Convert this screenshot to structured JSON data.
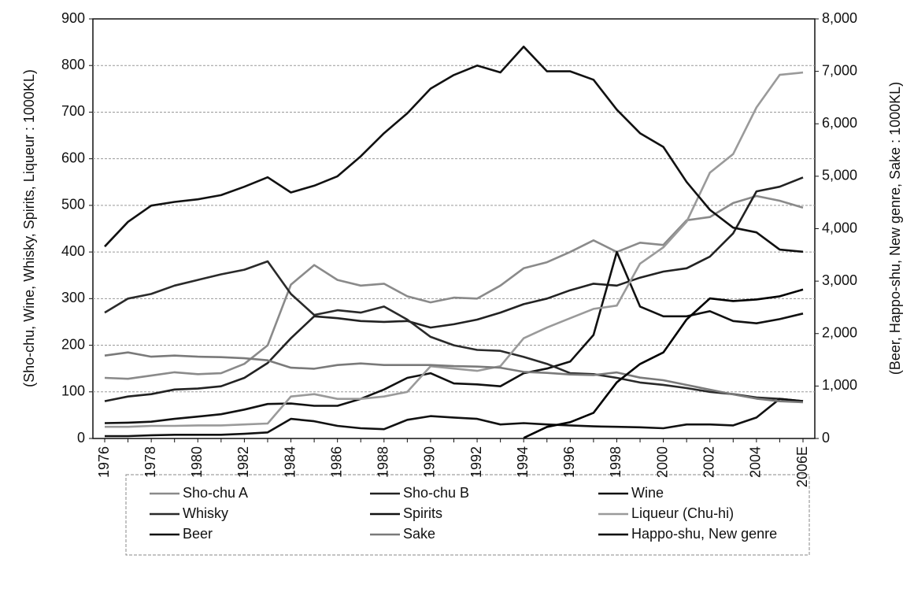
{
  "chart_data": {
    "type": "line",
    "ylabel": "(Sho-chu, Wine, Whisky, Spirits, Liqueur : 1000KL)",
    "y2label": "(Beer,  Happo-shu, New genre, Sake : 1000KL)",
    "categories": [
      "1976",
      null,
      "1978",
      null,
      "1980",
      null,
      "1982",
      null,
      "1984",
      null,
      "1986",
      null,
      "1988",
      null,
      "1990",
      null,
      "1992",
      null,
      "1994",
      null,
      "1996",
      null,
      "1998",
      null,
      "2000",
      null,
      "2002",
      null,
      "2004",
      null,
      "2006E"
    ],
    "ylim": [
      0,
      900
    ],
    "yticks": [
      0,
      100,
      200,
      300,
      400,
      500,
      600,
      700,
      800,
      900
    ],
    "y2lim": [
      0,
      8000
    ],
    "y2ticks": [
      0,
      {
        "value": 1000,
        "label": "1,000"
      },
      {
        "value": 2000,
        "label": "2,000"
      },
      {
        "value": 3000,
        "label": "3,000"
      },
      {
        "value": 4000,
        "label": "4,000"
      },
      {
        "value": 5000,
        "label": "5,000"
      },
      {
        "value": 6000,
        "label": "6,000"
      },
      {
        "value": 7000,
        "label": "7,000"
      },
      {
        "value": 8000,
        "label": "8,000"
      }
    ],
    "grid": true,
    "legend": "bottom",
    "series": [
      {
        "name": "Sho-chu A",
        "color": "#8a8a8a",
        "values": [
          130,
          128,
          135,
          142,
          138,
          140,
          160,
          200,
          330,
          372,
          340,
          328,
          332,
          305,
          292,
          302,
          300,
          328,
          365,
          378,
          400,
          425,
          400,
          420,
          415,
          468,
          475,
          505,
          520,
          510,
          495
        ]
      },
      {
        "name": "Sho-chu B",
        "color": "#222222",
        "values": [
          80,
          90,
          95,
          105,
          107,
          112,
          130,
          162,
          215,
          262,
          258,
          252,
          250,
          252,
          238,
          245,
          255,
          270,
          288,
          300,
          318,
          332,
          328,
          345,
          358,
          365,
          390,
          440,
          530,
          540,
          560
        ]
      },
      {
        "name": "Wine",
        "color": "#111111",
        "values": [
          33,
          34,
          36,
          42,
          47,
          52,
          62,
          74,
          75,
          70,
          70,
          85,
          105,
          130,
          140,
          118,
          116,
          112,
          140,
          150,
          165,
          222,
          400,
          283,
          262,
          262,
          273,
          252,
          247,
          256,
          268
        ]
      },
      {
        "name": "Whisky",
        "color": "#2a2a2a",
        "values": [
          270,
          300,
          310,
          328,
          340,
          352,
          362,
          380,
          310,
          265,
          275,
          270,
          283,
          255,
          218,
          200,
          190,
          188,
          175,
          160,
          140,
          138,
          130,
          120,
          115,
          108,
          100,
          95,
          88,
          85,
          80
        ]
      },
      {
        "name": "Spirits",
        "color": "#111111",
        "values": [
          5,
          5,
          7,
          8,
          8,
          8,
          10,
          13,
          42,
          37,
          27,
          22,
          20,
          40,
          48,
          45,
          42,
          30,
          33,
          30,
          28,
          26,
          25,
          24,
          22,
          30,
          30,
          28,
          45,
          85,
          80
        ]
      },
      {
        "name": "Liqueur (Chu-hi)",
        "color": "#9a9a9a",
        "values": [
          25,
          25,
          27,
          27,
          28,
          28,
          30,
          32,
          90,
          95,
          85,
          85,
          90,
          100,
          155,
          150,
          145,
          155,
          215,
          238,
          258,
          278,
          285,
          375,
          410,
          465,
          570,
          610,
          710,
          780,
          785
        ]
      },
      {
        "name": "Beer",
        "color": "#111111",
        "axis": "y2",
        "values": [
          3660,
          4130,
          4440,
          4510,
          4560,
          4640,
          4800,
          4980,
          4690,
          4820,
          5000,
          5380,
          5820,
          6200,
          6670,
          6930,
          7110,
          6980,
          7470,
          7000,
          7000,
          6840,
          6270,
          5820,
          5560,
          4890,
          4360,
          4020,
          3930,
          3600,
          3560
        ]
      },
      {
        "name": "Sake",
        "color": "#7a7a7a",
        "axis": "y2",
        "values": [
          1580,
          1640,
          1560,
          1580,
          1560,
          1550,
          1530,
          1490,
          1350,
          1330,
          1400,
          1430,
          1400,
          1400,
          1400,
          1380,
          1370,
          1350,
          1270,
          1250,
          1220,
          1210,
          1260,
          1160,
          1110,
          1020,
          930,
          840,
          760,
          710,
          690
        ]
      },
      {
        "name": "Happo-shu, New genre",
        "color": "#000000",
        "axis": "y2",
        "values": [
          null,
          null,
          null,
          null,
          null,
          null,
          null,
          null,
          null,
          null,
          null,
          null,
          null,
          null,
          null,
          null,
          null,
          null,
          10,
          220,
          310,
          490,
          1070,
          1420,
          1640,
          2270,
          2670,
          2620,
          2650,
          2710,
          2840
        ]
      }
    ]
  }
}
